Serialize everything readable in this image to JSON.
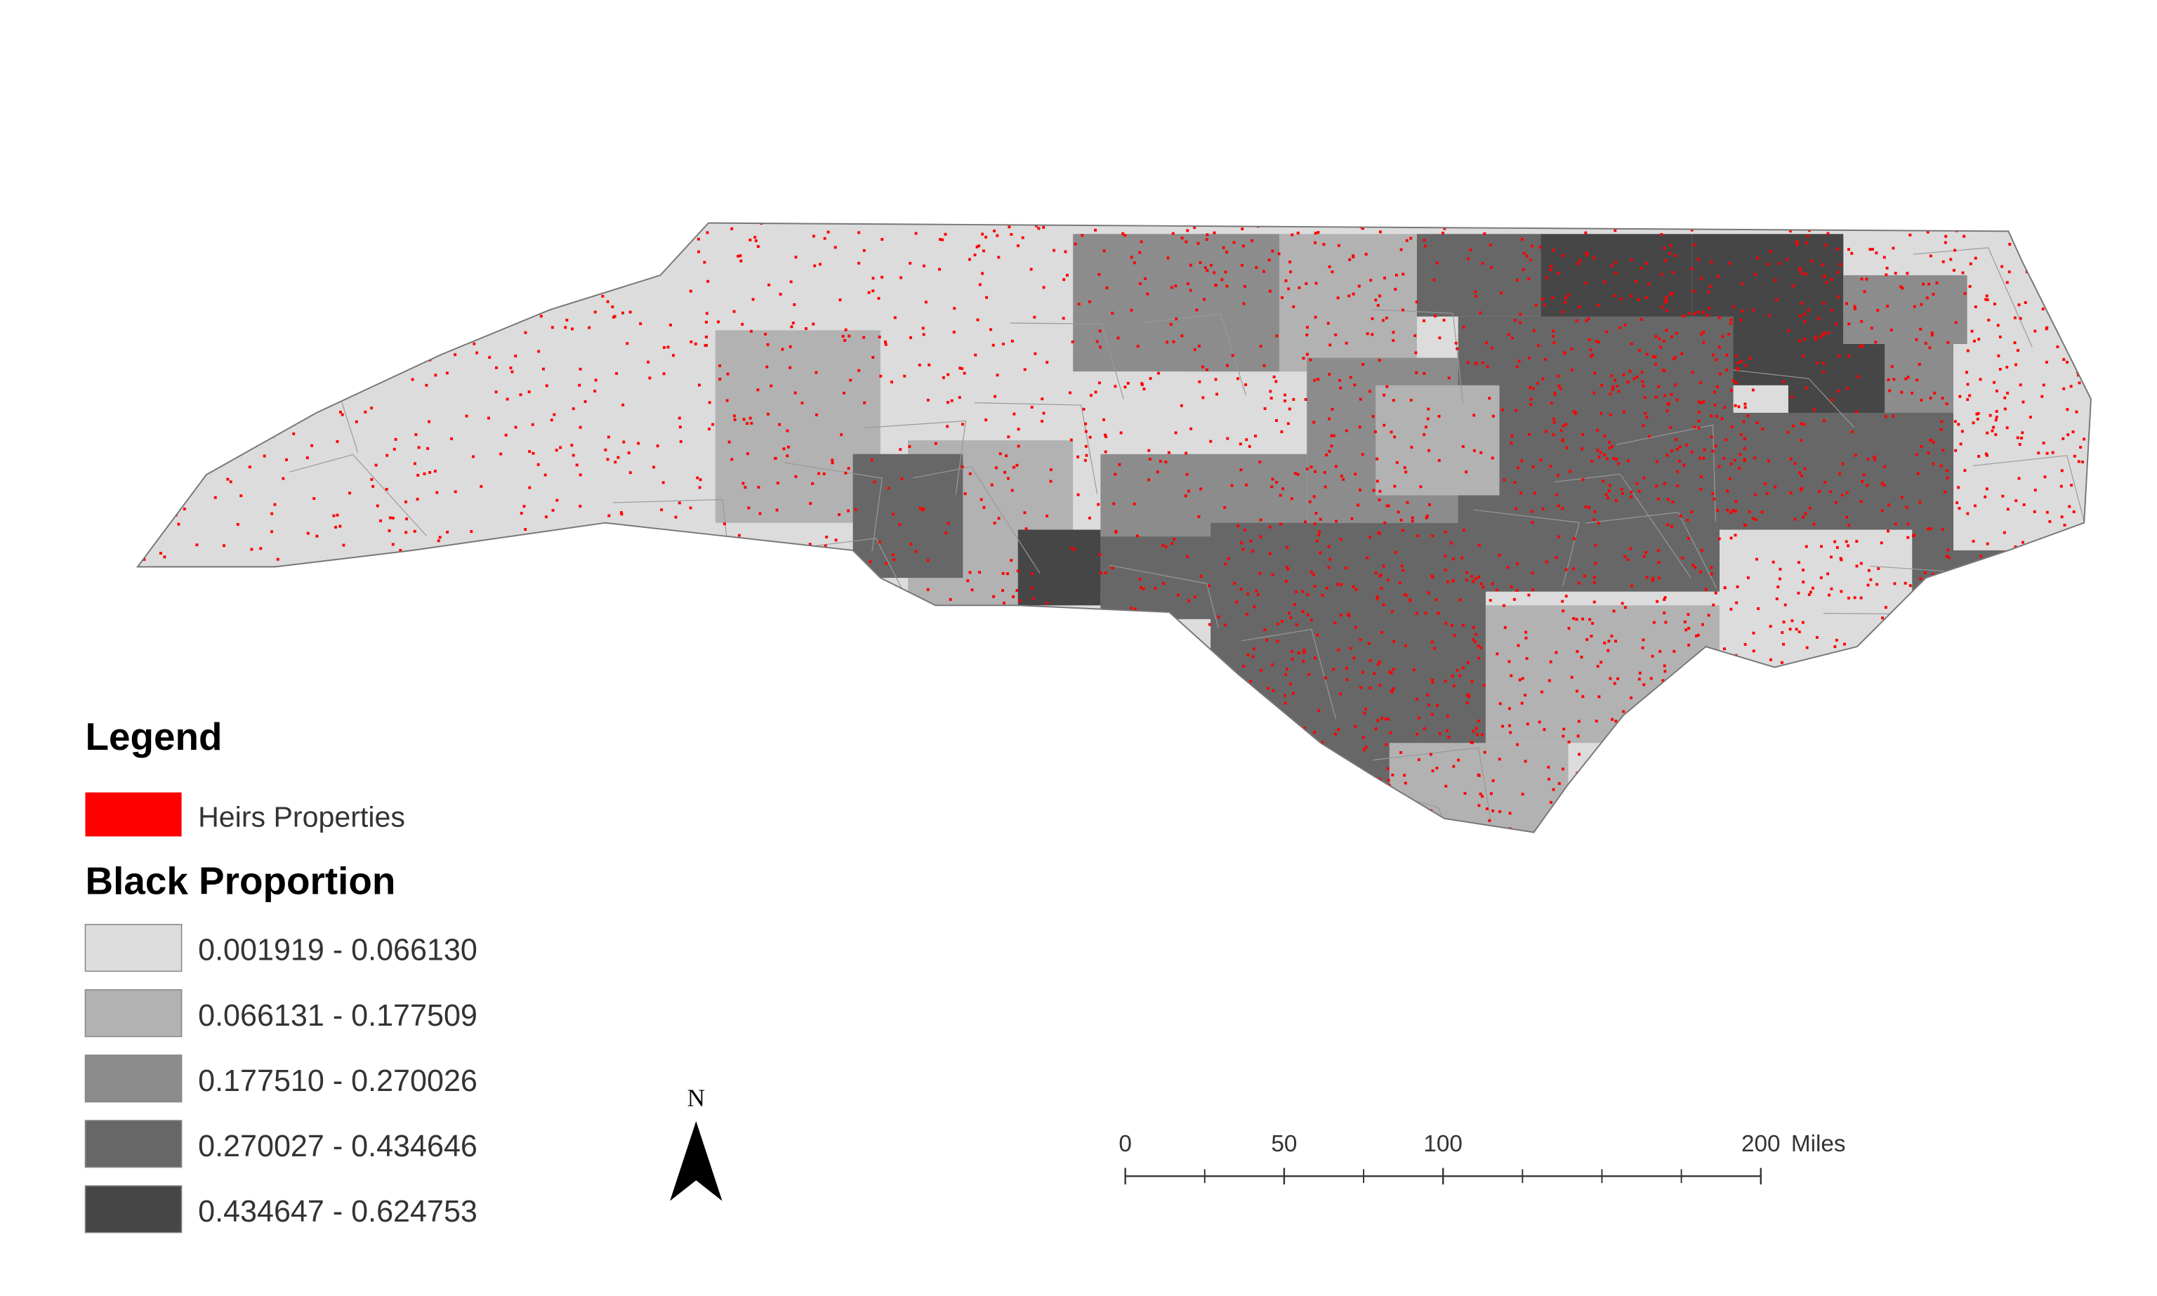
{
  "legend": {
    "title": "Legend",
    "points": {
      "label": "Heirs Properties",
      "color": "#ff0000"
    },
    "classes_title": "Black Proportion",
    "classes": [
      {
        "label": "0.001919 - 0.066130",
        "color": "#dcdcdc"
      },
      {
        "label": "0.066131 - 0.177509",
        "color": "#b2b2b2"
      },
      {
        "label": "0.177510 - 0.270026",
        "color": "#8c8c8c"
      },
      {
        "label": "0.270027 - 0.434646",
        "color": "#676767"
      },
      {
        "label": "0.434647 - 0.624753",
        "color": "#464646"
      }
    ]
  },
  "north_arrow": {
    "label": "N"
  },
  "scale_bar": {
    "ticks": [
      0,
      50,
      100,
      200
    ],
    "max": 200,
    "unit": "Miles"
  }
}
